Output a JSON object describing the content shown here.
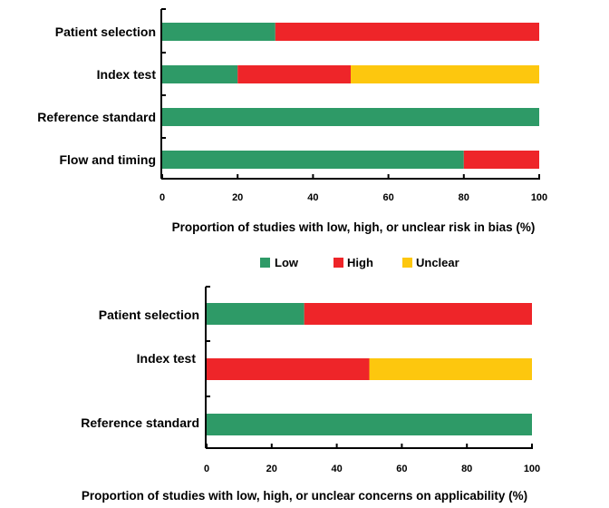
{
  "colors": {
    "Low": "#2e9a67",
    "High": "#ee2529",
    "Unclear": "#fdc70e"
  },
  "legend": {
    "items": [
      "Low",
      "High",
      "Unclear"
    ]
  },
  "chart_data": [
    {
      "type": "bar",
      "orientation": "horizontal",
      "stacked": true,
      "categories": [
        "Patient selection",
        "Index test",
        "Reference standard",
        "Flow and timing"
      ],
      "series": [
        {
          "name": "Low",
          "values": [
            30,
            20,
            100,
            80
          ]
        },
        {
          "name": "High",
          "values": [
            70,
            30,
            0,
            20
          ]
        },
        {
          "name": "Unclear",
          "values": [
            0,
            50,
            0,
            0
          ]
        }
      ],
      "xlim": [
        0,
        100
      ],
      "xticks": [
        "0",
        "20",
        "40",
        "60",
        "80",
        "100"
      ],
      "xlabel": "Proportion of studies with low, high, or unclear risk in bias (%)",
      "legend_position": "bottom-center"
    },
    {
      "type": "bar",
      "orientation": "horizontal",
      "stacked": true,
      "categories": [
        "Patient selection",
        "Index test",
        "Reference standard"
      ],
      "series": [
        {
          "name": "Low",
          "values": [
            30,
            0,
            100
          ]
        },
        {
          "name": "High",
          "values": [
            70,
            50,
            0
          ]
        },
        {
          "name": "Unclear",
          "values": [
            0,
            50,
            0
          ]
        }
      ],
      "xlim": [
        0,
        100
      ],
      "xticks": [
        "0",
        "20",
        "40",
        "60",
        "80",
        "100"
      ],
      "xlabel": "Proportion of studies with low, high, or unclear concerns on applicability (%)"
    }
  ]
}
